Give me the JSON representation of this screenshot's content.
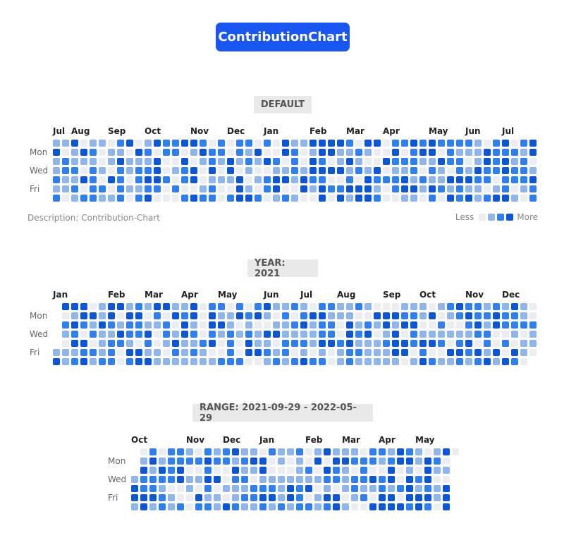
{
  "header": {
    "title": "ContributionChart"
  },
  "colors": [
    "#ebedf0",
    "#8fb5ea",
    "#2f7ff2",
    "#0c55d6"
  ],
  "legend": {
    "less": "Less",
    "more": "More"
  },
  "sections": [
    {
      "label": "DEFAULT",
      "weeks": 53,
      "start_weekday": 0,
      "days": 371,
      "seed": 17,
      "weekday_labels": [
        "Mon",
        "Wed",
        "Fri"
      ],
      "months": [
        {
          "label": "Jul",
          "week": 0
        },
        {
          "label": "Aug",
          "week": 2
        },
        {
          "label": "Sep",
          "week": 6
        },
        {
          "label": "Oct",
          "week": 10
        },
        {
          "label": "Nov",
          "week": 15
        },
        {
          "label": "Dec",
          "week": 19
        },
        {
          "label": "Jan",
          "week": 23
        },
        {
          "label": "Feb",
          "week": 28
        },
        {
          "label": "Mar",
          "week": 32
        },
        {
          "label": "Apr",
          "week": 36
        },
        {
          "label": "May",
          "week": 41
        },
        {
          "label": "Jun",
          "week": 45
        },
        {
          "label": "Jul",
          "week": 49
        }
      ],
      "description": "Description: Contribution-Chart"
    },
    {
      "label": "YEAR: 2021",
      "weeks": 53,
      "start_weekday": 5,
      "days": 365,
      "seed": 41,
      "weekday_labels": [
        "Mon",
        "Wed",
        "Fri"
      ],
      "months": [
        {
          "label": "Jan",
          "week": 0
        },
        {
          "label": "Feb",
          "week": 6
        },
        {
          "label": "Mar",
          "week": 10
        },
        {
          "label": "Apr",
          "week": 14
        },
        {
          "label": "May",
          "week": 18
        },
        {
          "label": "Jun",
          "week": 23
        },
        {
          "label": "Jul",
          "week": 27
        },
        {
          "label": "Aug",
          "week": 31
        },
        {
          "label": "Sep",
          "week": 36
        },
        {
          "label": "Oct",
          "week": 40
        },
        {
          "label": "Nov",
          "week": 45
        },
        {
          "label": "Dec",
          "week": 49
        }
      ]
    },
    {
      "label": "RANGE: 2021-09-29 - 2022-05-29",
      "weeks": 36,
      "start_weekday": 3,
      "days": 243,
      "seed": 73,
      "weekday_labels": [
        "Mon",
        "Wed",
        "Fri"
      ],
      "months": [
        {
          "label": "Oct",
          "week": 0
        },
        {
          "label": "Nov",
          "week": 6
        },
        {
          "label": "Dec",
          "week": 10
        },
        {
          "label": "Jan",
          "week": 14
        },
        {
          "label": "Feb",
          "week": 19
        },
        {
          "label": "Mar",
          "week": 23
        },
        {
          "label": "Apr",
          "week": 27
        },
        {
          "label": "May",
          "week": 31
        }
      ]
    }
  ]
}
